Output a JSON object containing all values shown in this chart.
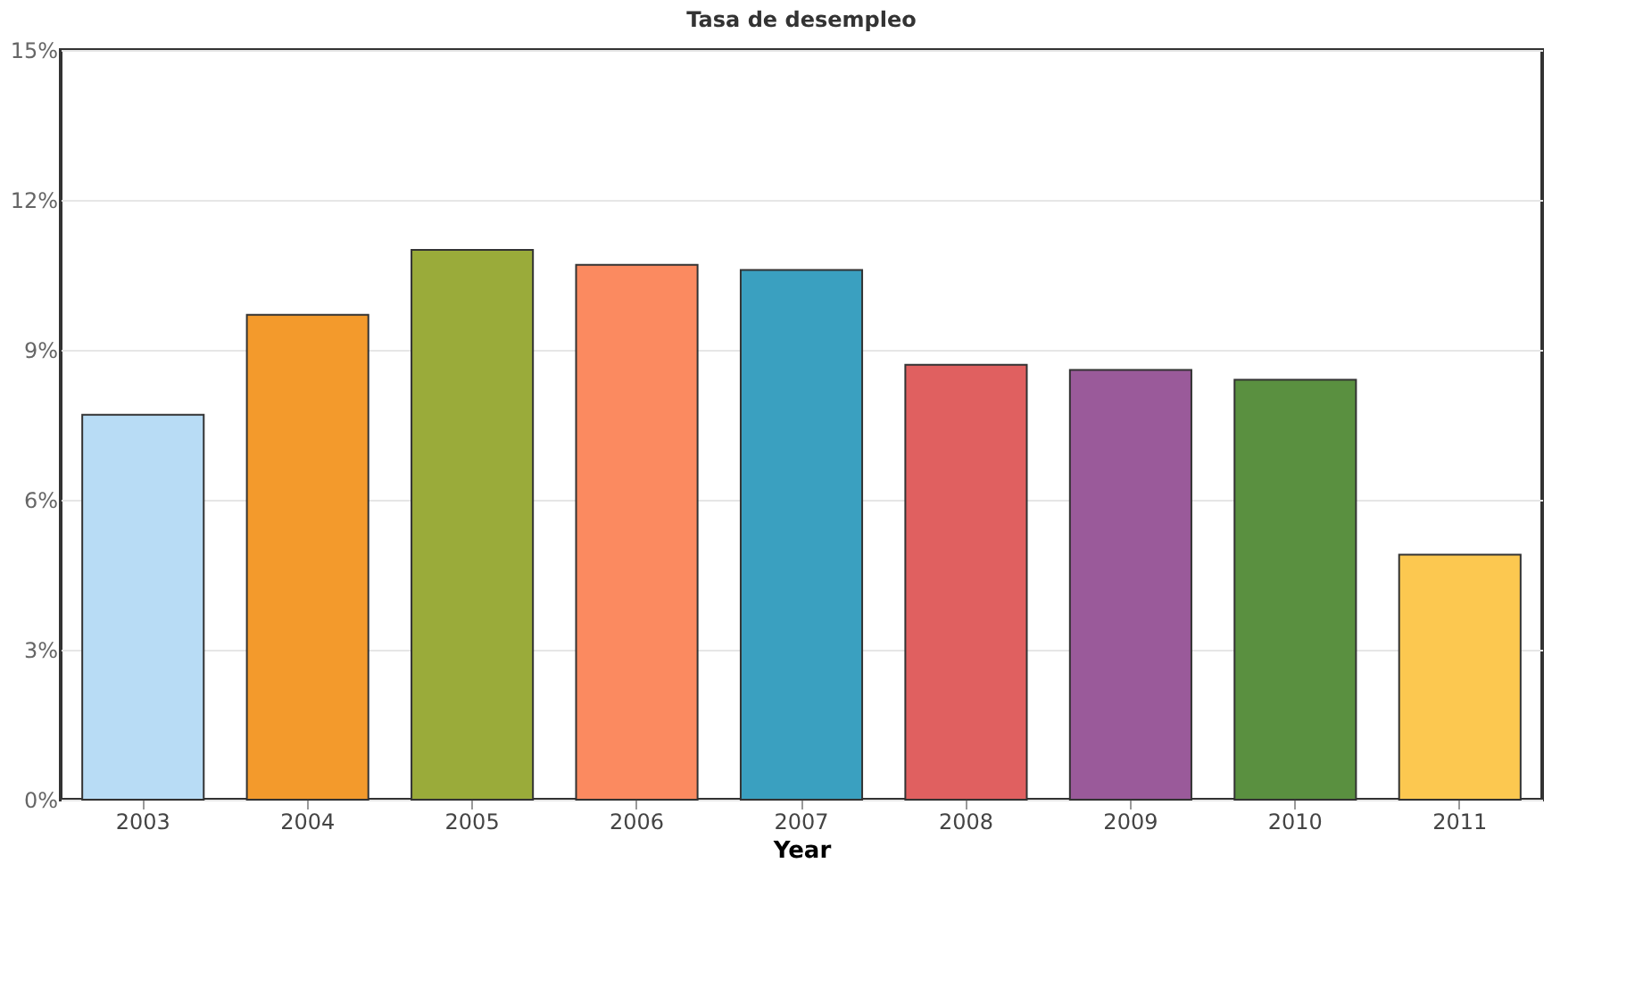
{
  "chart_data": {
    "type": "bar",
    "title": "Tasa de desempleo",
    "xlabel": "Year",
    "categories": [
      "2003",
      "2004",
      "2005",
      "2006",
      "2007",
      "2008",
      "2009",
      "2010",
      "2011"
    ],
    "values": [
      7.7,
      9.7,
      11.0,
      10.7,
      10.6,
      8.7,
      8.6,
      8.4,
      4.9
    ],
    "colors": [
      "#b8dcf5",
      "#f39a2c",
      "#9aab3a",
      "#fb8a60",
      "#3aa0c0",
      "#e06060",
      "#9a5a9a",
      "#5a9040",
      "#fcc850"
    ],
    "ylim": [
      0,
      15
    ],
    "yticks": [
      {
        "value": 0,
        "label": "0%"
      },
      {
        "value": 3,
        "label": "3%"
      },
      {
        "value": 6,
        "label": "6%"
      },
      {
        "value": 9,
        "label": "9%"
      },
      {
        "value": 12,
        "label": "12%"
      },
      {
        "value": 15,
        "label": "15%"
      }
    ],
    "grid": "y"
  }
}
